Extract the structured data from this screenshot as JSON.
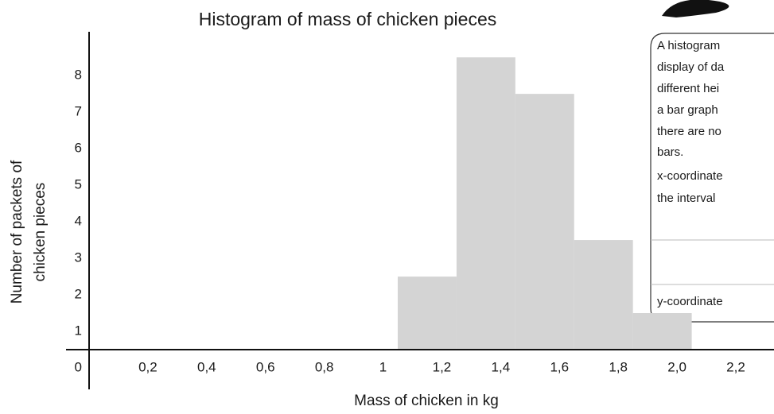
{
  "chart_data": {
    "type": "histogram",
    "title": "Histogram of mass of chicken pieces",
    "xlabel": "Mass of chicken in kg",
    "ylabel": [
      "Number of packets of",
      "chicken pieces"
    ],
    "bins": [
      1.05,
      1.25,
      1.45,
      1.65,
      1.85,
      2.05
    ],
    "values": [
      2,
      8,
      7,
      3,
      1
    ],
    "color": "#d4d4d4",
    "xlim": [
      0,
      2.2
    ],
    "xticks": [
      {
        "value": 0.2,
        "label": "0,2"
      },
      {
        "value": 0.4,
        "label": "0,4"
      },
      {
        "value": 0.6,
        "label": "0,6"
      },
      {
        "value": 0.8,
        "label": "0,8"
      },
      1,
      {
        "value": 1.2,
        "label": "1,2"
      },
      {
        "value": 1.4,
        "label": "1,4"
      },
      {
        "value": 1.6,
        "label": "1,6"
      },
      {
        "value": 1.8,
        "label": "1,8"
      },
      {
        "value": 2.0,
        "label": "2,0"
      },
      {
        "value": 2.2,
        "label": "2,2"
      }
    ],
    "ylim": [
      0,
      8.7
    ],
    "yticks": [
      0,
      1,
      2,
      3,
      4,
      5,
      6,
      7,
      8
    ],
    "note": [
      "A histogram",
      "display of da",
      "different hei",
      "a bar graph",
      "there are no",
      "bars.",
      "x-coordinate",
      "the interval",
      "y-coordinate"
    ]
  }
}
